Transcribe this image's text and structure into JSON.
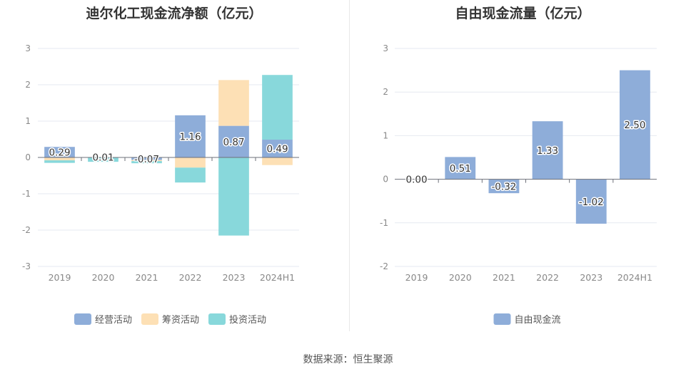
{
  "source_label": "数据来源：恒生聚源",
  "chart_data": [
    {
      "id": "cashflow",
      "type": "bar",
      "stacked": true,
      "title": "迪尔化工现金流净额（亿元）",
      "categories": [
        "2019",
        "2020",
        "2021",
        "2022",
        "2023",
        "2024H1"
      ],
      "ylim": [
        -3,
        3
      ],
      "yticks": [
        -3,
        -2,
        -1,
        0,
        1,
        2,
        3
      ],
      "grid": true,
      "legend_position": "bottom",
      "series": [
        {
          "name": "经营活动",
          "color": "#8eadd9",
          "values": [
            0.29,
            0.01,
            -0.07,
            1.16,
            0.87,
            0.49
          ],
          "labels": [
            "0.29",
            "0.01",
            "-0.07",
            "1.16",
            "0.87",
            "0.49"
          ]
        },
        {
          "name": "筹资活动",
          "color": "#fde0b5",
          "values": [
            -0.08,
            0.0,
            -0.03,
            -0.28,
            1.26,
            -0.21
          ]
        },
        {
          "name": "投资活动",
          "color": "#88d8db",
          "values": [
            -0.07,
            -0.12,
            -0.06,
            -0.41,
            -2.15,
            1.78
          ]
        }
      ]
    },
    {
      "id": "fcf",
      "type": "bar",
      "title": "自由现金流量（亿元）",
      "categories": [
        "2019",
        "2020",
        "2021",
        "2022",
        "2023",
        "2024H1"
      ],
      "ylim": [
        -2,
        3
      ],
      "yticks": [
        -2,
        -1,
        0,
        1,
        2,
        3
      ],
      "grid": true,
      "legend_position": "bottom",
      "series": [
        {
          "name": "自由现金流",
          "color": "#8eadd9",
          "values": [
            0.0,
            0.51,
            -0.32,
            1.33,
            -1.02,
            2.5
          ],
          "labels": [
            "0.00",
            "0.51",
            "-0.32",
            "1.33",
            "-1.02",
            "2.50"
          ]
        }
      ]
    }
  ]
}
